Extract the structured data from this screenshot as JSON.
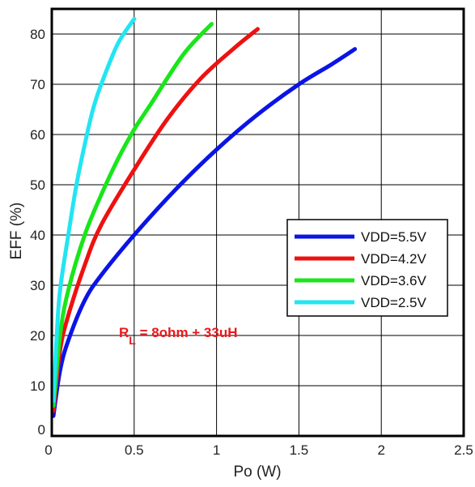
{
  "chart_data": {
    "type": "line",
    "title": "",
    "xlabel": "Po (W)",
    "ylabel": "EFF (%)",
    "xlim": [
      0,
      2.5
    ],
    "ylim": [
      0,
      85
    ],
    "x_ticks": [
      "0",
      "0.5",
      "1",
      "1.5",
      "2",
      "2.5"
    ],
    "y_ticks": [
      "0",
      "10",
      "20",
      "30",
      "40",
      "50",
      "60",
      "70",
      "80"
    ],
    "grid": true,
    "legend_position": "right-middle",
    "annotation": {
      "main": "R",
      "sub": "L",
      "rest": " = 8ohm + 33uH",
      "color": "#e8191c"
    },
    "series": [
      {
        "name": "VDD=5.5V",
        "color": "#0a14e6",
        "x": [
          0.01,
          0.05,
          0.1,
          0.2,
          0.3,
          0.5,
          0.75,
          1.0,
          1.25,
          1.5,
          1.7,
          1.84
        ],
        "y": [
          4,
          13,
          19,
          27,
          32,
          40,
          49,
          57,
          64,
          70,
          74,
          77
        ]
      },
      {
        "name": "VDD=4.2V",
        "color": "#ee1111",
        "x": [
          0.01,
          0.05,
          0.1,
          0.2,
          0.3,
          0.5,
          0.7,
          0.9,
          1.1,
          1.25
        ],
        "y": [
          5,
          17,
          24,
          34,
          42,
          53,
          63,
          71,
          77,
          81
        ]
      },
      {
        "name": "VDD=3.6V",
        "color": "#19e619",
        "x": [
          0.01,
          0.05,
          0.1,
          0.2,
          0.3,
          0.4,
          0.5,
          0.6,
          0.8,
          0.97
        ],
        "y": [
          6,
          20,
          29,
          40,
          48,
          55,
          61,
          66,
          76,
          82
        ]
      },
      {
        "name": "VDD=2.5V",
        "color": "#22e5f2",
        "x": [
          0.01,
          0.03,
          0.05,
          0.1,
          0.15,
          0.2,
          0.25,
          0.3,
          0.4,
          0.5
        ],
        "y": [
          7,
          20,
          29,
          40,
          50,
          58,
          65,
          70,
          78,
          83
        ]
      }
    ]
  }
}
